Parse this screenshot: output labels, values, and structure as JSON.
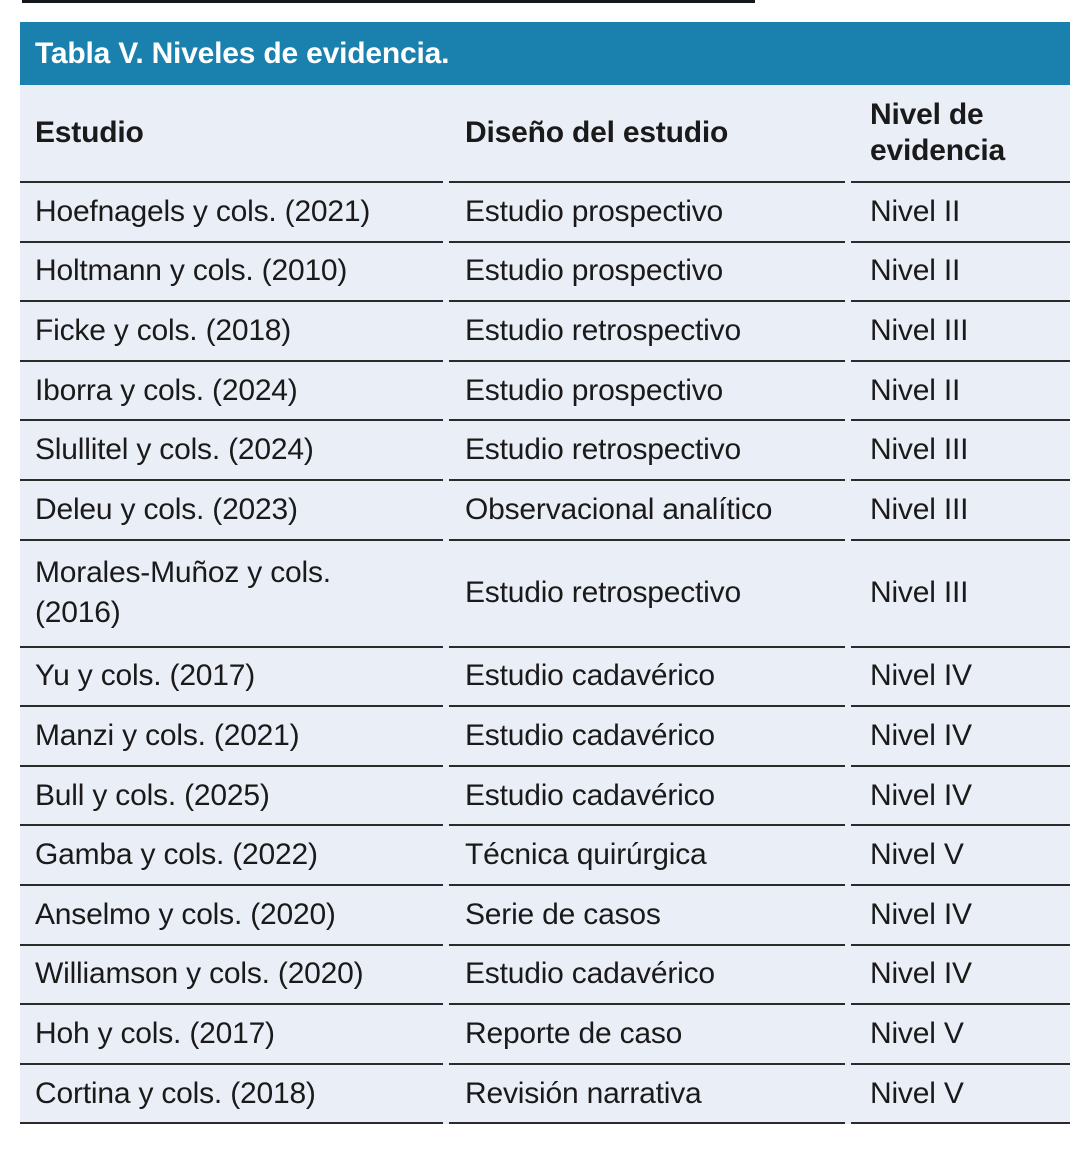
{
  "colors": {
    "header_bg": "#1a81ae",
    "row_bg": "#eaeef7",
    "border_color": "#2b2b2b",
    "title_color": "#ffffff",
    "text_color": "#1a1a1a",
    "page_bg": "#ffffff"
  },
  "table": {
    "title": "Tabla V. Niveles de evidencia.",
    "columns": [
      "Estudio",
      "Diseño del estudio",
      "Nivel de evidencia"
    ],
    "rows": [
      {
        "study": "Hoefnagels y cols. (2021)",
        "design": "Estudio prospectivo",
        "level": "Nivel II"
      },
      {
        "study": "Holtmann y cols. (2010)",
        "design": "Estudio prospectivo",
        "level": "Nivel II"
      },
      {
        "study": "Ficke y cols. (2018)",
        "design": "Estudio retrospectivo",
        "level": "Nivel III"
      },
      {
        "study": "Iborra y cols. (2024)",
        "design": "Estudio prospectivo",
        "level": "Nivel II"
      },
      {
        "study": "Slullitel y cols. (2024)",
        "design": "Estudio retrospectivo",
        "level": "Nivel III"
      },
      {
        "study": "Deleu y cols. (2023)",
        "design": "Observacional analítico",
        "level": "Nivel III"
      },
      {
        "study": "Morales-Muñoz y cols.",
        "study_line2": "(2016)",
        "design": "Estudio retrospectivo",
        "level": "Nivel III"
      },
      {
        "study": "Yu y cols. (2017)",
        "design": "Estudio cadavérico",
        "level": "Nivel IV"
      },
      {
        "study": "Manzi y cols. (2021)",
        "design": "Estudio cadavérico",
        "level": "Nivel IV"
      },
      {
        "study": "Bull y cols. (2025)",
        "design": "Estudio cadavérico",
        "level": "Nivel IV"
      },
      {
        "study": "Gamba y cols. (2022)",
        "design": "Técnica quirúrgica",
        "level": "Nivel V"
      },
      {
        "study": "Anselmo y cols. (2020)",
        "design": "Serie de casos",
        "level": "Nivel IV"
      },
      {
        "study": "Williamson y cols. (2020)",
        "design": "Estudio cadavérico",
        "level": "Nivel IV"
      },
      {
        "study": "Hoh y cols. (2017)",
        "design": "Reporte de caso",
        "level": "Nivel V"
      },
      {
        "study": "Cortina y cols. (2018)",
        "design": "Revisión narrativa",
        "level": "Nivel V"
      }
    ]
  }
}
